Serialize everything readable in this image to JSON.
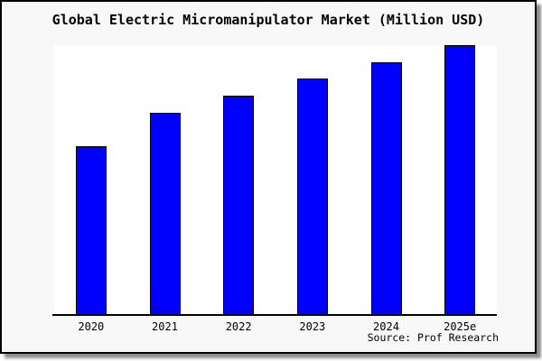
{
  "chart_data": {
    "type": "bar",
    "title": "Global Electric Micromanipulator Market (Million USD)",
    "categories": [
      "2020",
      "2021",
      "2022",
      "2023",
      "2024",
      "2025e"
    ],
    "values": [
      62.7,
      75.0,
      81.3,
      87.7,
      93.7,
      100.0
    ],
    "value_note": "No y-axis ticks or gridlines shown; values are relative bar heights normalized so the tallest bar (2025e) = 100",
    "ylim": [
      0,
      100
    ],
    "xlabel": "",
    "ylabel": "",
    "grid": false,
    "legend": false,
    "bar_color": "#0000ff",
    "bar_border_color": "#000000",
    "source": "Source: Prof Research"
  },
  "panel": {
    "background": "#f8f8f8",
    "plot_background": "#ffffff",
    "border_color": "#000000",
    "shadow_color": "#8e8e8e"
  }
}
